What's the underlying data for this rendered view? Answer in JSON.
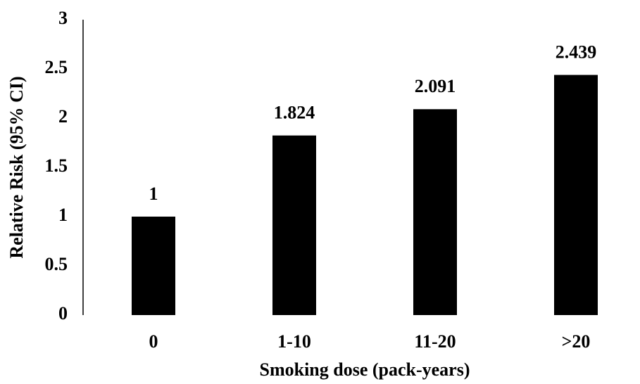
{
  "chart_data": {
    "type": "bar",
    "x_label": "Smoking dose (pack-years)",
    "y_label": "Relative Risk (95% CI)",
    "categories": [
      "0",
      "1-10",
      "11-20",
      ">20"
    ],
    "values": [
      1,
      1.824,
      2.091,
      2.439
    ],
    "color": "#000000",
    "ylim": [
      0,
      3
    ],
    "yticks": [
      0,
      0.5,
      1,
      1.5,
      2,
      2.5,
      3
    ],
    "grid": false
  }
}
